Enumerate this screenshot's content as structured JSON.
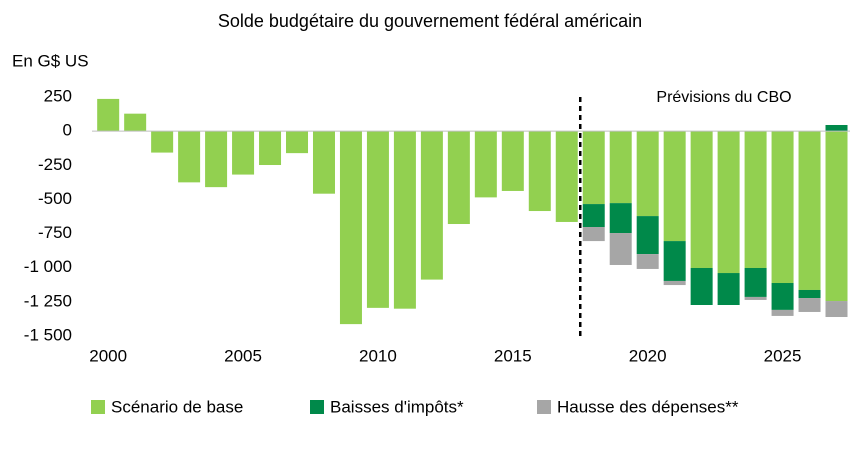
{
  "chart_data": {
    "type": "stacked_bar",
    "title": "Solde budgétaire du gouvernement fédéral américain",
    "y_label": "En G$ US",
    "annotation": "Prévisions du CBO",
    "forecast_start": 2017.5,
    "x": [
      2000,
      2001,
      2002,
      2003,
      2004,
      2005,
      2006,
      2007,
      2008,
      2009,
      2010,
      2011,
      2012,
      2013,
      2014,
      2015,
      2016,
      2017,
      2018,
      2019,
      2020,
      2021,
      2022,
      2023,
      2024,
      2025,
      2026,
      2027
    ],
    "xlim": [
      1999.4,
      2027.5
    ],
    "xticks": [
      2000,
      2005,
      2010,
      2015,
      2020,
      2025
    ],
    "ylim": [
      -1500,
      250
    ],
    "yticks": [
      250,
      0,
      -250,
      -500,
      -750,
      {
        "value": -1000,
        "label": "-1 000"
      },
      {
        "value": -1250,
        "label": "-1 250"
      },
      {
        "value": -1500,
        "label": "-1 500"
      }
    ],
    "legend": "bottom",
    "series": [
      {
        "name": "Scénario de base",
        "color": "#92d050",
        "values": [
          236,
          128,
          -157,
          -375,
          -410,
          -318,
          -248,
          -161,
          -458,
          -1413,
          -1294,
          -1300,
          -1087,
          -680,
          -485,
          -438,
          -585,
          -665,
          -534,
          -527,
          -622,
          -805,
          -1002,
          -1039,
          -1002,
          -1112,
          -1163,
          -1244
        ]
      },
      {
        "name": "Baisses d'impôts*",
        "color": "#00894a",
        "values": [
          null,
          null,
          null,
          null,
          null,
          null,
          null,
          null,
          null,
          null,
          null,
          null,
          null,
          null,
          null,
          null,
          null,
          null,
          -168,
          -219,
          -278,
          -292,
          -271,
          -234,
          -212,
          -197,
          -59,
          45
        ]
      },
      {
        "name": "Hausse des dépenses**",
        "color": "#a6a6a6",
        "values": [
          null,
          null,
          null,
          null,
          null,
          null,
          null,
          null,
          null,
          null,
          null,
          null,
          null,
          null,
          null,
          null,
          null,
          null,
          -103,
          -234,
          -109,
          -30,
          null,
          null,
          -22,
          -44,
          -102,
          -117
        ]
      }
    ]
  }
}
